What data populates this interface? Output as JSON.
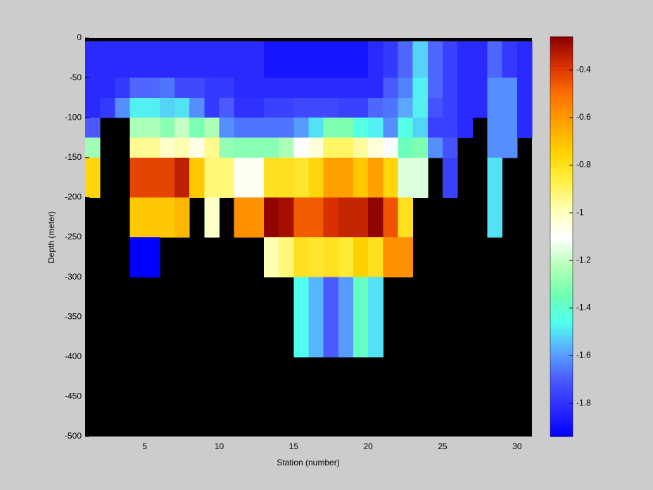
{
  "chart_data": {
    "type": "heatmap",
    "x_label": "Station (number)",
    "y_label": "Depth (meter)",
    "xlim": [
      1,
      31
    ],
    "ylim": [
      -500,
      0
    ],
    "xticks": [
      5,
      10,
      15,
      20,
      25,
      30
    ],
    "yticks": [
      0,
      -50,
      -100,
      -150,
      -200,
      -250,
      -300,
      -350,
      -400,
      -450,
      -500
    ],
    "x_edges": [
      1,
      2,
      3,
      4,
      5,
      6,
      7,
      8,
      9,
      10,
      11,
      12,
      13,
      14,
      15,
      16,
      17,
      18,
      19,
      20,
      21,
      22,
      23,
      24,
      25,
      26,
      27,
      28,
      29,
      30,
      31
    ],
    "y_edges": [
      -4,
      -50,
      -75,
      -100,
      -125,
      -150,
      -200,
      -250,
      -300,
      -400,
      -500
    ],
    "values": [
      [
        -1.82,
        -1.82,
        -1.82,
        -1.82,
        -1.82,
        -1.82,
        -1.82,
        -1.82,
        -1.82,
        -1.82,
        -1.82,
        -1.82,
        -1.88,
        -1.88,
        -1.88,
        -1.88,
        -1.88,
        -1.88,
        -1.88,
        -1.82,
        -1.78,
        -1.68,
        -1.52,
        -1.68,
        -1.76,
        -1.82,
        -1.82,
        -1.68,
        -1.78,
        -1.82
      ],
      [
        -1.82,
        -1.82,
        -1.78,
        -1.68,
        -1.68,
        -1.66,
        -1.74,
        -1.74,
        -1.78,
        -1.78,
        -1.82,
        -1.82,
        -1.82,
        -1.82,
        -1.82,
        -1.82,
        -1.82,
        -1.82,
        -1.82,
        -1.82,
        -1.7,
        -1.64,
        -1.48,
        -1.68,
        -1.76,
        -1.82,
        -1.82,
        -1.62,
        -1.62,
        -1.82
      ],
      [
        -1.82,
        -1.78,
        -1.62,
        -1.48,
        -1.48,
        -1.52,
        -1.5,
        -1.62,
        -1.78,
        -1.7,
        -1.8,
        -1.8,
        -1.76,
        -1.76,
        -1.74,
        -1.74,
        -1.74,
        -1.76,
        -1.76,
        -1.68,
        -1.66,
        -1.58,
        -1.48,
        -1.72,
        -1.76,
        -1.82,
        -1.82,
        -1.62,
        -1.62,
        -1.82
      ],
      [
        -1.7,
        null,
        null,
        -1.24,
        -1.24,
        -1.3,
        -1.2,
        -1.32,
        -1.24,
        -1.62,
        -1.66,
        -1.66,
        -1.66,
        -1.66,
        -1.6,
        -1.5,
        -1.32,
        -1.32,
        -1.44,
        -1.48,
        -1.62,
        -1.44,
        -1.52,
        -1.76,
        -1.76,
        -1.82,
        null,
        -1.62,
        -1.62,
        -1.82
      ],
      [
        -1.26,
        null,
        null,
        -0.95,
        -0.95,
        -1.02,
        -0.98,
        -1.06,
        -0.94,
        -1.28,
        -1.3,
        -1.3,
        -1.3,
        -1.24,
        -1.1,
        -1.04,
        -0.9,
        -0.9,
        -0.96,
        -1.04,
        -1.1,
        -1.36,
        -1.32,
        -1.62,
        -1.72,
        null,
        null,
        -1.62,
        -1.62,
        null
      ],
      [
        -0.76,
        null,
        null,
        -0.42,
        -0.42,
        -0.42,
        -0.34,
        -0.72,
        -0.92,
        -0.92,
        -1.08,
        -1.08,
        -0.8,
        -0.8,
        -0.82,
        -0.76,
        -0.62,
        -0.62,
        -0.72,
        -0.62,
        -0.76,
        -1.16,
        -1.16,
        null,
        -1.76,
        null,
        null,
        -1.5,
        null,
        null
      ],
      [
        null,
        null,
        null,
        -0.72,
        -0.72,
        -0.72,
        -0.68,
        null,
        -1.02,
        null,
        -0.58,
        -0.58,
        -0.27,
        -0.3,
        -0.46,
        -0.46,
        -0.38,
        -0.35,
        -0.35,
        -0.27,
        -0.45,
        -0.8,
        null,
        null,
        null,
        null,
        null,
        -1.5,
        null,
        null
      ],
      [
        null,
        null,
        null,
        -1.94,
        -1.94,
        null,
        null,
        null,
        null,
        null,
        null,
        null,
        -0.98,
        -0.92,
        -0.8,
        -0.82,
        -0.8,
        -0.84,
        -0.74,
        -0.8,
        -0.58,
        -0.58,
        null,
        null,
        null,
        null,
        null,
        null,
        null,
        null
      ],
      [
        null,
        null,
        null,
        null,
        null,
        null,
        null,
        null,
        null,
        null,
        null,
        null,
        null,
        null,
        -1.46,
        -1.56,
        -1.7,
        -1.6,
        -1.38,
        -1.5,
        null,
        null,
        null,
        null,
        null,
        null,
        null,
        null,
        null,
        null
      ],
      [
        null,
        null,
        null,
        null,
        null,
        null,
        null,
        null,
        null,
        null,
        null,
        null,
        null,
        null,
        null,
        null,
        null,
        null,
        null,
        null,
        null,
        null,
        null,
        null,
        null,
        null,
        null,
        null,
        null,
        null
      ]
    ],
    "no_data_color": "#000000",
    "clim": [
      -1.94,
      -0.26
    ],
    "cticks": [
      -0.4,
      -0.6,
      -0.8,
      -1,
      -1.2,
      -1.4,
      -1.6,
      -1.8
    ],
    "colormap": [
      "#0000ff",
      "#2a2aff",
      "#4a5aff",
      "#5aa8ff",
      "#50ffef",
      "#70ffb0",
      "#b8ffb8",
      "#ffffff",
      "#ffffb0",
      "#fff040",
      "#ffd000",
      "#ffa000",
      "#ff7000",
      "#d83000",
      "#8b0000"
    ]
  }
}
